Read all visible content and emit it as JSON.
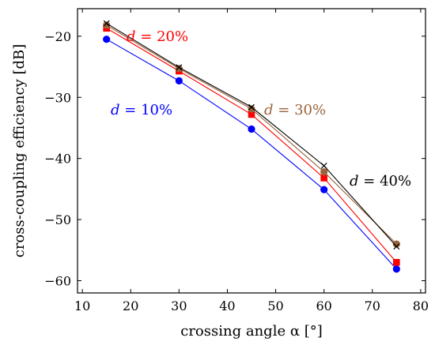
{
  "chart_data": {
    "type": "line",
    "xlabel": "crossing angle α [°]",
    "ylabel": "cross-coupling efficiency [dB]",
    "xlim": [
      9,
      81
    ],
    "ylim": [
      -62,
      -15.5
    ],
    "xticks": [
      10,
      20,
      30,
      40,
      50,
      60,
      70,
      80
    ],
    "yticks": [
      -20,
      -30,
      -40,
      -50,
      -60
    ],
    "xtick_labels": [
      "10",
      "20",
      "30",
      "40",
      "50",
      "60",
      "70",
      "80"
    ],
    "ytick_labels": [
      "−20",
      "−30",
      "−40",
      "−50",
      "−60"
    ],
    "grid": false,
    "series": [
      {
        "label_var": "d",
        "label_eq": " = ",
        "label_val": "10%",
        "color": "#0000ff",
        "marker": "circle",
        "x": [
          15,
          30,
          45,
          60,
          75
        ],
        "y": [
          -20.5,
          -27.3,
          -35.2,
          -45.1,
          -58.1
        ]
      },
      {
        "label_var": "d",
        "label_eq": " = ",
        "label_val": "20%",
        "color": "#ff0000",
        "marker": "square",
        "x": [
          15,
          30,
          45,
          60,
          75
        ],
        "y": [
          -18.7,
          -25.7,
          -32.8,
          -43.2,
          -57.0
        ]
      },
      {
        "label_var": "d",
        "label_eq": " = ",
        "label_val": "30%",
        "color": "#99643c",
        "marker": "circle",
        "x": [
          15,
          30,
          45,
          60,
          75
        ],
        "y": [
          -18.2,
          -25.3,
          -31.9,
          -42.2,
          -54.0
        ]
      },
      {
        "label_var": "d",
        "label_eq": " = ",
        "label_val": "40%",
        "color": "#000000",
        "marker": "cross",
        "x": [
          15,
          30,
          45,
          60,
          75
        ],
        "y": [
          -17.9,
          -25.1,
          -31.6,
          -41.2,
          -54.4
        ]
      }
    ]
  }
}
